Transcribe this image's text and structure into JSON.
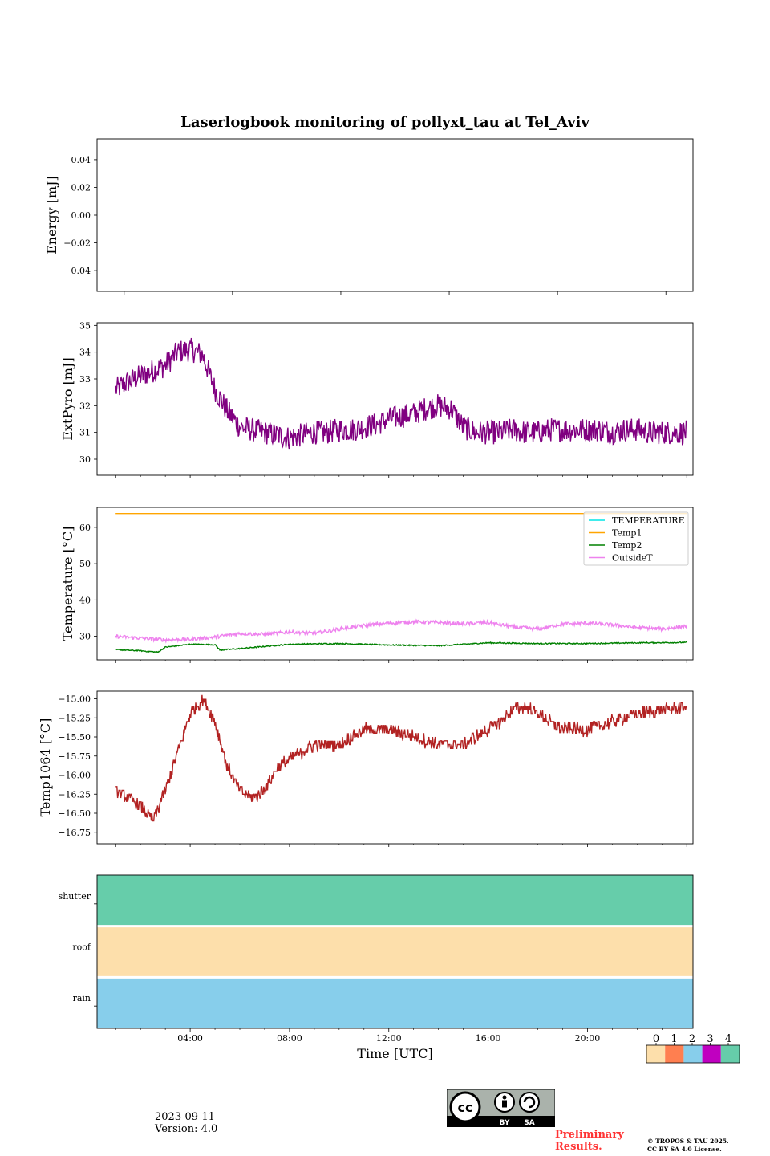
{
  "title": "Laserlogbook monitoring of pollyxt_tau at Tel_Aviv",
  "footer": {
    "date": "2023-09-11",
    "version": "Version: 4.0",
    "preliminary": "Preliminary Results.",
    "copyright_line1": "© TROPOS & TAU 2025.",
    "copyright_line2": "CC BY SA 4.0 License.",
    "cc_by": "BY",
    "cc_sa": "SA"
  },
  "colors": {
    "extpyro": "#800080",
    "temperature": "#00e5e5",
    "temp1": "#ffa500",
    "temp2": "#008000",
    "outsideT": "#ee82ee",
    "temp1064": "#b22222",
    "flag0": "#fddfab",
    "flag1": "#ff7f50",
    "flag2": "#87ceeb",
    "flag3": "#c000c0",
    "flag4": "#66cdaa"
  },
  "chart_data": [
    {
      "type": "line",
      "ylabel": "Energy [mJ]",
      "ylim": [
        -0.055,
        0.055
      ],
      "yticks": [
        -0.04,
        -0.02,
        0.0,
        0.02,
        0.04
      ],
      "ytick_labels": [
        "−0.04",
        "−0.02",
        "0.00",
        "0.02",
        "0.04"
      ],
      "xlim": [
        -0.25,
        5.25
      ],
      "x_range": [
        0,
        5
      ],
      "series": []
    },
    {
      "type": "line",
      "ylabel": "ExtPyro [mJ]",
      "ylim": [
        29.4,
        35.1
      ],
      "yticks": [
        30,
        31,
        32,
        33,
        34,
        35
      ],
      "xlim": [
        0.25,
        24.25
      ],
      "series": [
        {
          "name": "ExtPyro",
          "color_key": "extpyro",
          "x": [
            1.0,
            1.5,
            2.0,
            2.5,
            3.0,
            3.5,
            4.0,
            4.5,
            5.0,
            5.5,
            6.0,
            6.5,
            7.0,
            7.5,
            8.0,
            8.5,
            9.0,
            9.5,
            10.0,
            10.5,
            11.0,
            11.5,
            12.0,
            12.5,
            13.0,
            13.5,
            14.0,
            14.5,
            15.0,
            15.5,
            16.0,
            16.5,
            17.0,
            17.5,
            18.0,
            18.5,
            19.0,
            19.5,
            20.0,
            20.5,
            21.0,
            21.5,
            22.0,
            22.5,
            23.0,
            23.5,
            24.0
          ],
          "values": [
            32.6,
            32.9,
            33.1,
            33.3,
            33.5,
            34.0,
            34.1,
            33.9,
            32.6,
            31.8,
            31.2,
            31.1,
            31.0,
            30.9,
            30.8,
            30.9,
            31.0,
            31.0,
            31.1,
            31.1,
            31.2,
            31.3,
            31.5,
            31.6,
            31.7,
            31.9,
            32.0,
            31.9,
            31.2,
            31.0,
            31.0,
            31.0,
            31.1,
            31.0,
            31.0,
            31.1,
            31.1,
            31.1,
            31.1,
            31.1,
            31.0,
            31.1,
            31.1,
            31.0,
            31.0,
            31.0,
            31.0
          ],
          "noise": 0.45
        }
      ]
    },
    {
      "type": "line",
      "ylabel": "Temperature [°C]",
      "ylim": [
        23.5,
        65.5
      ],
      "yticks": [
        30,
        40,
        50,
        60
      ],
      "xlim": [
        0.25,
        24.25
      ],
      "legend": "top-right",
      "series": [
        {
          "name": "TEMPERATURE",
          "color_key": "temperature",
          "x": [],
          "values": []
        },
        {
          "name": "Temp1",
          "color_key": "temp1",
          "x": [
            1.0,
            24.0
          ],
          "values": [
            63.8,
            63.8
          ],
          "noise": 0
        },
        {
          "name": "Temp2",
          "color_key": "temp2",
          "x": [
            1.0,
            2.0,
            2.7,
            3.0,
            4.0,
            5.0,
            5.2,
            6.0,
            7.0,
            8.0,
            10.0,
            12.0,
            14.0,
            16.0,
            18.0,
            20.0,
            22.0,
            24.0
          ],
          "values": [
            26.3,
            26.0,
            25.6,
            27.0,
            27.8,
            27.7,
            26.2,
            26.6,
            27.2,
            27.8,
            28.0,
            27.6,
            27.4,
            28.2,
            28.0,
            28.0,
            28.2,
            28.3
          ],
          "noise": 0.15
        },
        {
          "name": "OutsideT",
          "color_key": "outsideT",
          "x": [
            1.0,
            2.0,
            3.0,
            4.0,
            5.0,
            6.0,
            7.0,
            8.0,
            9.0,
            10.0,
            11.0,
            12.0,
            13.0,
            14.0,
            15.0,
            16.0,
            17.0,
            18.0,
            19.0,
            20.0,
            21.0,
            22.0,
            23.0,
            24.0
          ],
          "values": [
            30.0,
            29.5,
            29.0,
            29.2,
            29.8,
            30.8,
            30.5,
            31.2,
            30.8,
            32.0,
            33.0,
            33.6,
            34.0,
            33.8,
            33.4,
            33.8,
            32.6,
            32.0,
            33.4,
            33.6,
            33.2,
            32.4,
            32.0,
            32.8
          ],
          "noise": 0.5
        }
      ]
    },
    {
      "type": "line",
      "ylabel": "Temp1064 [°C]",
      "ylim": [
        -16.9,
        -14.9
      ],
      "yticks": [
        -16.75,
        -16.5,
        -16.25,
        -16.0,
        -15.75,
        -15.5,
        -15.25,
        -15.0
      ],
      "ytick_labels": [
        "−16.75",
        "−16.50",
        "−16.25",
        "−16.00",
        "−15.75",
        "−15.50",
        "−15.25",
        "−15.00"
      ],
      "xlim": [
        0.25,
        24.25
      ],
      "series": [
        {
          "name": "Temp1064",
          "color_key": "temp1064",
          "x": [
            1.0,
            1.5,
            2.0,
            2.5,
            3.0,
            3.5,
            4.0,
            4.5,
            5.0,
            5.5,
            6.0,
            6.5,
            7.0,
            7.5,
            8.0,
            8.5,
            9.0,
            10.0,
            11.0,
            12.0,
            13.0,
            14.0,
            15.0,
            16.0,
            16.5,
            17.0,
            17.5,
            18.0,
            18.5,
            19.0,
            20.0,
            21.0,
            22.0,
            23.0,
            24.0
          ],
          "values": [
            -16.2,
            -16.3,
            -16.4,
            -16.6,
            -16.2,
            -15.7,
            -15.2,
            -15.0,
            -15.3,
            -15.9,
            -16.2,
            -16.3,
            -16.2,
            -15.9,
            -15.8,
            -15.7,
            -15.6,
            -15.6,
            -15.4,
            -15.4,
            -15.5,
            -15.6,
            -15.6,
            -15.4,
            -15.3,
            -15.15,
            -15.1,
            -15.2,
            -15.3,
            -15.4,
            -15.4,
            -15.3,
            -15.2,
            -15.15,
            -15.1
          ],
          "noise": 0.08,
          "quantum": 0.05
        }
      ]
    },
    {
      "type": "heatmap",
      "rows": [
        "rain",
        "roof",
        "shutter"
      ],
      "row_values": [
        2,
        0,
        4
      ],
      "xlim": [
        0.25,
        24.25
      ],
      "xlabel": "Time [UTC]",
      "xticks": [
        4,
        8,
        12,
        16,
        20
      ],
      "xtick_labels": [
        "04:00",
        "08:00",
        "12:00",
        "16:00",
        "20:00"
      ],
      "minor_xticks": [
        1,
        2,
        3,
        5,
        6,
        7,
        9,
        10,
        11,
        13,
        14,
        15,
        17,
        18,
        19,
        21,
        22,
        23
      ],
      "colorbar": {
        "ticks": [
          "0",
          "1",
          "2",
          "3",
          "4"
        ],
        "color_keys": [
          "flag0",
          "flag1",
          "flag2",
          "flag3",
          "flag4"
        ]
      }
    }
  ]
}
